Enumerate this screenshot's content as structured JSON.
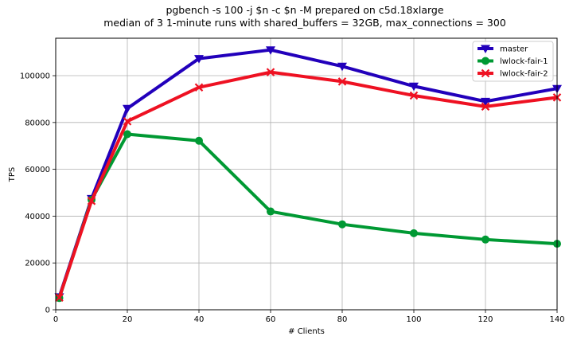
{
  "chart_data": {
    "type": "line",
    "title": "pgbench -s 100 -j $n -c $n -M prepared on c5d.18xlarge",
    "subtitle": "median of 3 1-minute runs with shared_buffers = 32GB, max_connections = 300",
    "xlabel": "# Clients",
    "ylabel": "TPS",
    "xlim": [
      0,
      140
    ],
    "ylim": [
      0,
      116000
    ],
    "xticks": [
      0,
      20,
      40,
      60,
      80,
      100,
      120,
      140
    ],
    "yticks": [
      0,
      20000,
      40000,
      60000,
      80000,
      100000
    ],
    "grid": true,
    "legend_position": "top-right",
    "x": [
      1,
      10,
      20,
      40,
      60,
      80,
      100,
      120,
      140
    ],
    "series": [
      {
        "name": "master",
        "color": "#2200bb",
        "marker": "triangle-down",
        "values": [
          5500,
          47500,
          86000,
          107300,
          111000,
          104000,
          95500,
          89000,
          94500
        ]
      },
      {
        "name": "lwlock-fair-1",
        "color": "#009933",
        "marker": "circle",
        "values": [
          5000,
          47000,
          75000,
          72200,
          42000,
          36500,
          32700,
          30000,
          28200
        ]
      },
      {
        "name": "lwlock-fair-2",
        "color": "#ee1122",
        "marker": "x",
        "values": [
          5200,
          46500,
          80500,
          95000,
          101500,
          97500,
          91500,
          86800,
          90700
        ]
      }
    ]
  }
}
